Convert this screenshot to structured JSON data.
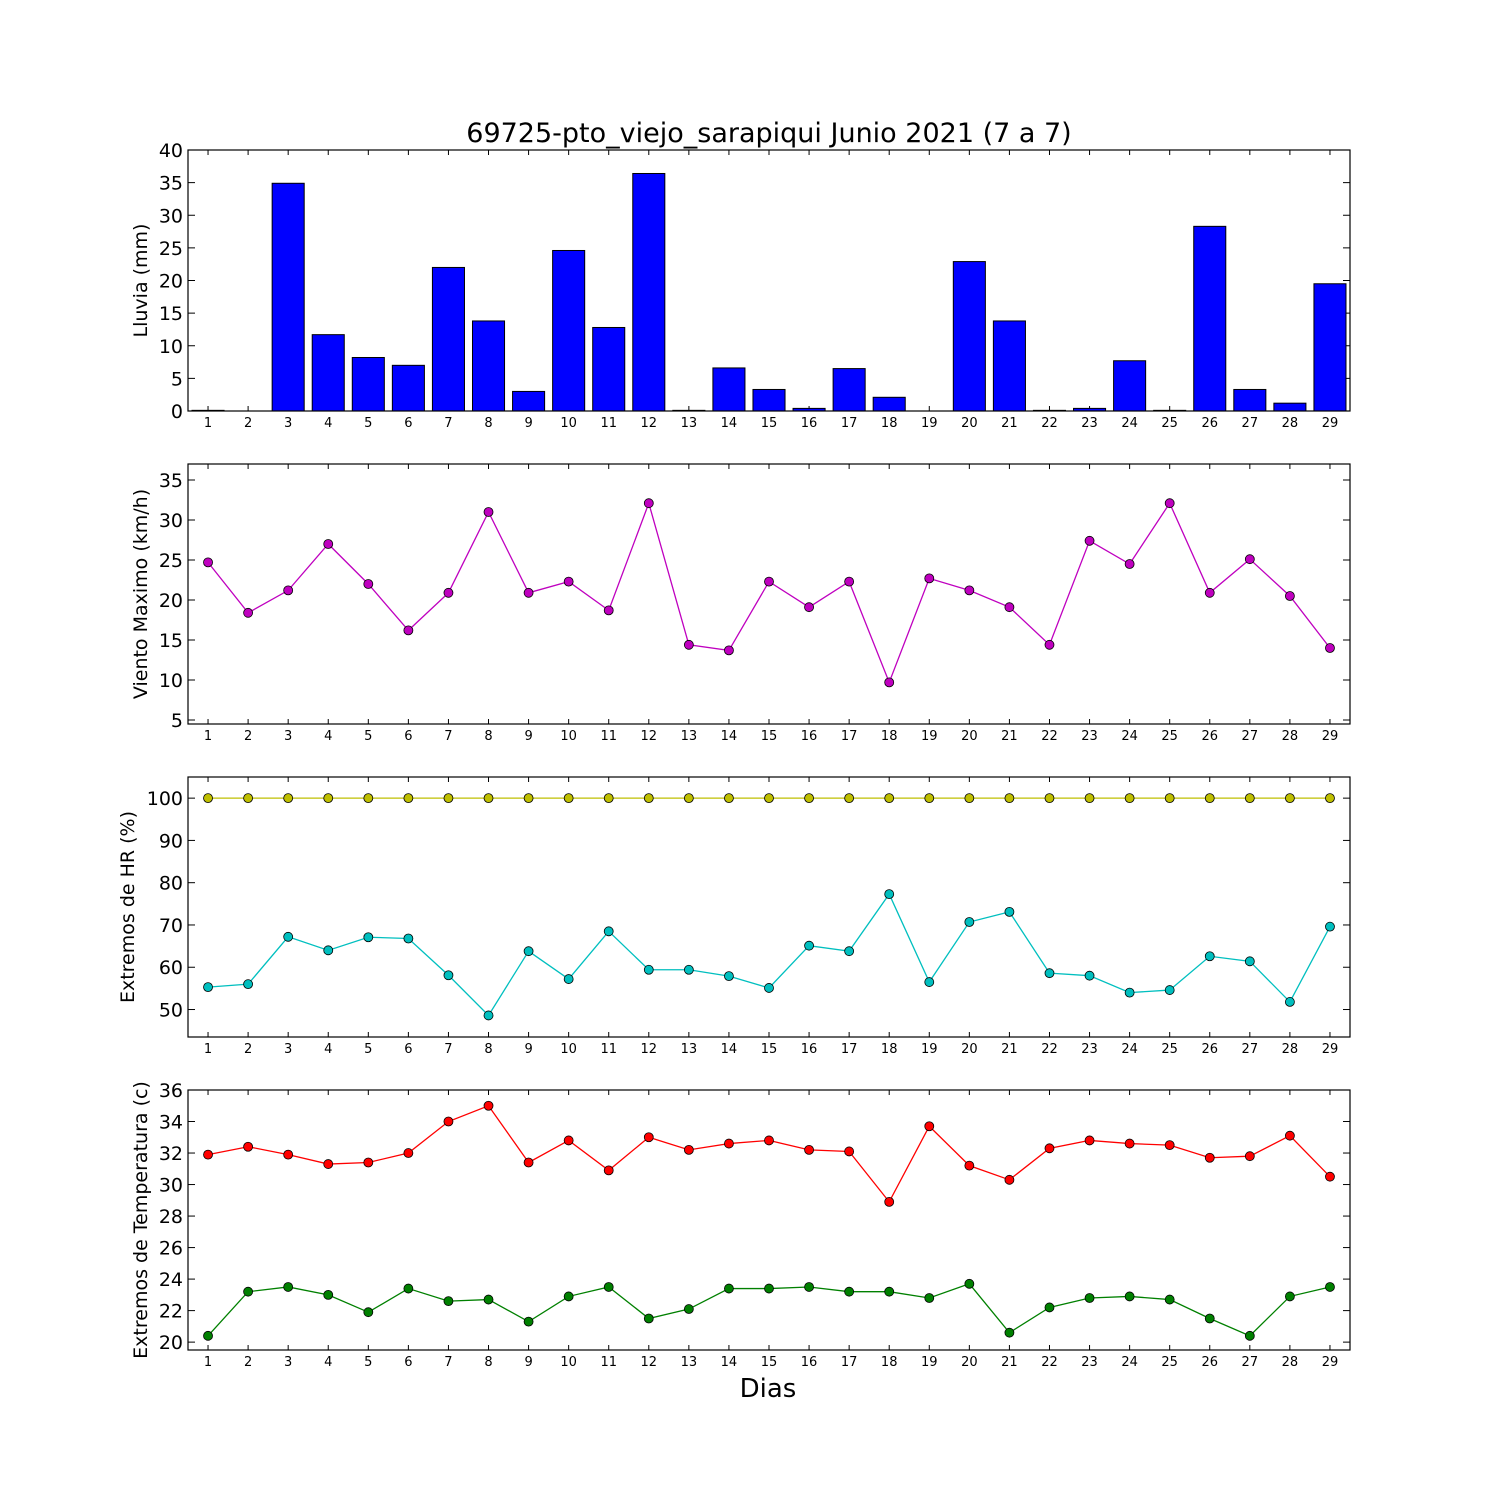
{
  "title": "69725-pto_viejo_sarapiqui Junio 2021  (7 a 7)",
  "xlabel": "Dias",
  "chart_data": [
    {
      "type": "bar",
      "ylabel": "Lluvia (mm)",
      "ylim": [
        0,
        40
      ],
      "yticks": [
        0,
        5,
        10,
        15,
        20,
        25,
        30,
        35,
        40
      ],
      "categories": [
        1,
        2,
        3,
        4,
        5,
        6,
        7,
        8,
        9,
        10,
        11,
        12,
        13,
        14,
        15,
        16,
        17,
        18,
        19,
        20,
        21,
        22,
        23,
        24,
        25,
        26,
        27,
        28,
        29
      ],
      "series": [
        {
          "color": "#0000ff",
          "values": [
            0.1,
            0,
            34.9,
            11.7,
            8.2,
            7.0,
            22.0,
            13.8,
            3.0,
            24.6,
            12.8,
            36.4,
            0.1,
            6.6,
            3.3,
            0.4,
            6.5,
            2.1,
            0,
            22.9,
            13.8,
            0.1,
            0.4,
            7.7,
            0.1,
            28.3,
            3.3,
            1.2,
            19.5
          ]
        }
      ]
    },
    {
      "type": "line",
      "ylabel": "Viento Maximo (km/h)",
      "ylim": [
        4.5,
        37
      ],
      "yticks": [
        5,
        10,
        15,
        20,
        25,
        30,
        35
      ],
      "x": [
        1,
        2,
        3,
        4,
        5,
        6,
        7,
        8,
        9,
        10,
        11,
        12,
        13,
        14,
        15,
        16,
        17,
        18,
        19,
        20,
        21,
        22,
        23,
        24,
        25,
        26,
        27,
        28,
        29
      ],
      "series": [
        {
          "color": "#bf00bf",
          "values": [
            24.7,
            18.4,
            21.2,
            27.0,
            22.0,
            16.2,
            20.9,
            31.0,
            20.9,
            22.3,
            18.7,
            32.1,
            14.4,
            13.7,
            22.3,
            19.1,
            22.3,
            9.7,
            22.7,
            21.2,
            19.1,
            14.4,
            27.4,
            24.5,
            32.1,
            20.9,
            25.1,
            20.5,
            14.0
          ]
        }
      ]
    },
    {
      "type": "line",
      "ylabel": "Extremos de HR (%)",
      "ylim": [
        43.5,
        105
      ],
      "yticks": [
        50,
        60,
        70,
        80,
        90,
        100
      ],
      "x": [
        1,
        2,
        3,
        4,
        5,
        6,
        7,
        8,
        9,
        10,
        11,
        12,
        13,
        14,
        15,
        16,
        17,
        18,
        19,
        20,
        21,
        22,
        23,
        24,
        25,
        26,
        27,
        28,
        29
      ],
      "series": [
        {
          "color": "#bfbf00",
          "values": [
            100,
            100,
            100,
            100,
            100,
            100,
            100,
            100,
            100,
            100,
            100,
            100,
            100,
            100,
            100,
            100,
            100,
            100,
            100,
            100,
            100,
            100,
            100,
            100,
            100,
            100,
            100,
            100,
            100
          ]
        },
        {
          "color": "#00bfbf",
          "values": [
            55.3,
            56.0,
            67.2,
            64.0,
            67.1,
            66.8,
            58.1,
            48.6,
            63.8,
            57.2,
            68.5,
            59.4,
            59.4,
            57.9,
            55.1,
            65.1,
            63.8,
            77.3,
            56.5,
            70.7,
            73.1,
            58.6,
            58.0,
            54.0,
            54.6,
            62.6,
            61.4,
            51.8,
            69.6
          ]
        }
      ]
    },
    {
      "type": "line",
      "ylabel": "Extremos de Temperatura (c)",
      "ylim": [
        19.5,
        36
      ],
      "yticks": [
        20,
        22,
        24,
        26,
        28,
        30,
        32,
        34,
        36
      ],
      "x": [
        1,
        2,
        3,
        4,
        5,
        6,
        7,
        8,
        9,
        10,
        11,
        12,
        13,
        14,
        15,
        16,
        17,
        18,
        19,
        20,
        21,
        22,
        23,
        24,
        25,
        26,
        27,
        28,
        29
      ],
      "series": [
        {
          "color": "#ff0000",
          "values": [
            31.9,
            32.4,
            31.9,
            31.3,
            31.4,
            32.0,
            34.0,
            35.0,
            31.4,
            32.8,
            30.9,
            33.0,
            32.2,
            32.6,
            32.8,
            32.2,
            32.1,
            28.9,
            33.7,
            31.2,
            30.3,
            32.3,
            32.8,
            32.6,
            32.5,
            31.7,
            31.8,
            33.1,
            30.5
          ]
        },
        {
          "color": "#008000",
          "values": [
            20.4,
            23.2,
            23.5,
            23.0,
            21.9,
            23.4,
            22.6,
            22.7,
            21.3,
            22.9,
            23.5,
            21.5,
            22.1,
            23.4,
            23.4,
            23.5,
            23.2,
            23.2,
            22.8,
            23.7,
            20.6,
            22.2,
            22.8,
            22.9,
            22.7,
            21.5,
            20.4,
            22.9,
            23.5
          ]
        }
      ]
    }
  ]
}
